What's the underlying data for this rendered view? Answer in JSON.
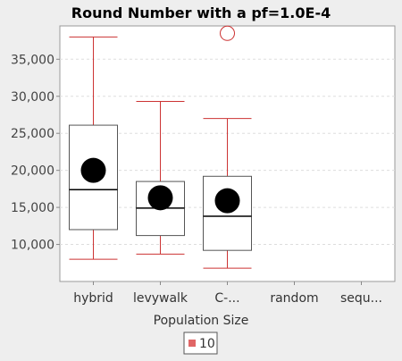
{
  "chart_data": {
    "type": "box",
    "title": "Round Number with a pf=1.0E-4",
    "xlabel": "Population Size",
    "ylabel": "",
    "categories": [
      "hybrid",
      "levywalk",
      "C-...",
      "random",
      "sequ..."
    ],
    "ylim": [
      5000,
      39500
    ],
    "yticks": [
      10000,
      15000,
      20000,
      25000,
      30000,
      35000
    ],
    "ytick_labels": [
      "10,000",
      "15,000",
      "20,000",
      "25,000",
      "30,000",
      "35,000"
    ],
    "grid": true,
    "legend": {
      "placement": "bottom-center",
      "entries": [
        {
          "label": "10",
          "color": "#e06666"
        }
      ]
    },
    "series": [
      {
        "name": "10",
        "color": "#cc3333",
        "boxes": [
          {
            "category": "hybrid",
            "whisker_low": 8000,
            "q1": 12000,
            "median": 17400,
            "q3": 26100,
            "whisker_high": 38000,
            "mean": 20000,
            "outliers": []
          },
          {
            "category": "levywalk",
            "whisker_low": 8700,
            "q1": 11200,
            "median": 14900,
            "q3": 18500,
            "whisker_high": 29300,
            "mean": 16300,
            "outliers": []
          },
          {
            "category": "C-...",
            "whisker_low": 6800,
            "q1": 9200,
            "median": 13800,
            "q3": 19200,
            "whisker_high": 27000,
            "mean": 15900,
            "outliers": [
              38500
            ]
          }
        ]
      }
    ]
  }
}
